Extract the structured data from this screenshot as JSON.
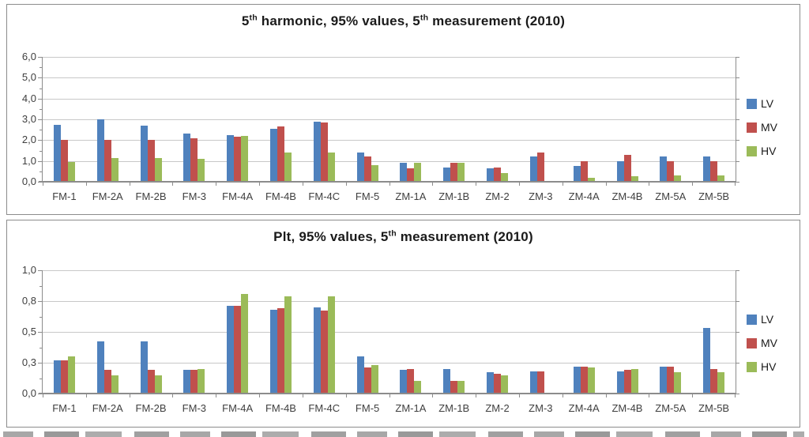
{
  "colors": {
    "lv": "#4F81BD",
    "mv": "#C0504D",
    "hv": "#9BBB59",
    "gridline": "#C8C8C8",
    "axis": "#8C8C8C",
    "title_text": "#1A1A1A",
    "axis_label_text": "#3F3F3F"
  },
  "chart_data": [
    {
      "type": "bar",
      "title": "5th harmonic, 95% values, 5th measurement (2010)",
      "title_rich": [
        {
          "text": "5",
          "sup": false
        },
        {
          "text": "th",
          "sup": true
        },
        {
          "text": " harmonic, 95% values, 5",
          "sup": false
        },
        {
          "text": "th",
          "sup": true
        },
        {
          "text": " measurement (2010)",
          "sup": false
        }
      ],
      "categories": [
        "FM-1",
        "FM-2A",
        "FM-2B",
        "FM-3",
        "FM-4A",
        "FM-4B",
        "FM-4C",
        "FM-5",
        "ZM-1A",
        "ZM-1B",
        "ZM-2",
        "ZM-3",
        "ZM-4A",
        "ZM-4B",
        "ZM-5A",
        "ZM-5B"
      ],
      "series": [
        {
          "name": "LV",
          "color": "#4F81BD",
          "values": [
            2.75,
            3.0,
            2.7,
            2.3,
            2.25,
            2.55,
            2.9,
            1.4,
            0.9,
            0.7,
            0.65,
            1.2,
            0.75,
            1.0,
            1.2,
            1.2
          ]
        },
        {
          "name": "MV",
          "color": "#C0504D",
          "values": [
            2.0,
            2.0,
            2.0,
            2.1,
            2.15,
            2.65,
            2.85,
            1.2,
            0.65,
            0.9,
            0.7,
            1.4,
            1.0,
            1.3,
            1.0,
            1.0
          ]
        },
        {
          "name": "HV",
          "color": "#9BBB59",
          "values": [
            0.95,
            1.15,
            1.15,
            1.1,
            2.2,
            1.4,
            1.4,
            0.8,
            0.9,
            0.9,
            0.4,
            null,
            0.2,
            0.25,
            0.3,
            0.3
          ]
        }
      ],
      "ylim": [
        0,
        6
      ],
      "yticks": [
        {
          "v": 0,
          "label": "0,0"
        },
        {
          "v": 1,
          "label": "1,0"
        },
        {
          "v": 2,
          "label": "2,0"
        },
        {
          "v": 3,
          "label": "3,0"
        },
        {
          "v": 4,
          "label": "4,0"
        },
        {
          "v": 5,
          "label": "5,0"
        },
        {
          "v": 6,
          "label": "6,0"
        }
      ],
      "grid": true,
      "legend_position": "right"
    },
    {
      "type": "bar",
      "title": "Plt, 95% values, 5th measurement (2010)",
      "title_rich": [
        {
          "text": "Plt, 95% values, 5",
          "sup": false
        },
        {
          "text": "th",
          "sup": true
        },
        {
          "text": " measurement (2010)",
          "sup": false
        }
      ],
      "categories": [
        "FM-1",
        "FM-2A",
        "FM-2B",
        "FM-3",
        "FM-4A",
        "FM-4B",
        "FM-4C",
        "FM-5",
        "ZM-1A",
        "ZM-1B",
        "ZM-2",
        "ZM-3",
        "ZM-4A",
        "ZM-4B",
        "ZM-5A",
        "ZM-5B"
      ],
      "series": [
        {
          "name": "LV",
          "color": "#4F81BD",
          "values": [
            0.27,
            0.42,
            0.42,
            0.19,
            0.71,
            0.68,
            0.7,
            0.3,
            0.19,
            0.2,
            0.17,
            0.18,
            0.22,
            0.18,
            0.22,
            0.53
          ]
        },
        {
          "name": "MV",
          "color": "#C0504D",
          "values": [
            0.27,
            0.19,
            0.19,
            0.19,
            0.71,
            0.69,
            0.67,
            0.21,
            0.2,
            0.1,
            0.16,
            0.18,
            0.22,
            0.19,
            0.22,
            0.2
          ]
        },
        {
          "name": "HV",
          "color": "#9BBB59",
          "values": [
            0.3,
            0.15,
            0.15,
            0.2,
            0.81,
            0.79,
            0.79,
            0.23,
            0.1,
            0.1,
            0.15,
            null,
            0.21,
            0.2,
            0.17,
            0.17
          ]
        }
      ],
      "ylim": [
        0,
        1
      ],
      "yticks": [
        {
          "v": 0,
          "label": "0,0"
        },
        {
          "v": 0.25,
          "label": "0,3"
        },
        {
          "v": 0.5,
          "label": "0,5"
        },
        {
          "v": 0.75,
          "label": "0,8"
        },
        {
          "v": 1,
          "label": "1,0"
        }
      ],
      "grid": true,
      "legend_position": "right"
    }
  ]
}
